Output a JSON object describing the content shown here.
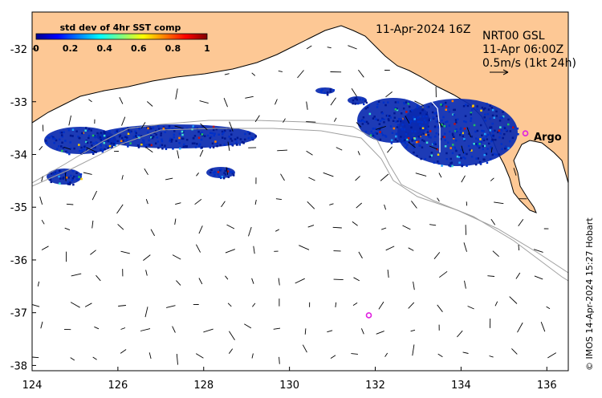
{
  "map": {
    "date_title": "11-Apr-2024 16Z",
    "product": "NRT00 GSL",
    "current_time": "11-Apr 06:00Z",
    "scale_label": "0.5m/s (1kt 24h)",
    "credit": "© IMOS 14-Apr-2024 15:27 Hobart",
    "argo_label": "Argo",
    "x_range": [
      124,
      136.5
    ],
    "y_range": [
      -38.1,
      -31.3
    ],
    "x_ticks": [
      "124",
      "126",
      "128",
      "130",
      "132",
      "134",
      "136"
    ],
    "y_ticks": [
      "-32",
      "-33",
      "-34",
      "-35",
      "-36",
      "-37",
      "-38"
    ],
    "colors": {
      "land": "#fdc895",
      "sst_low": "#0a2ab0",
      "argo": "#e020e0",
      "contour": "#a0a0a0"
    },
    "argo_floats": [
      {
        "lon": 135.5,
        "lat": -33.6,
        "labeled": true
      },
      {
        "lon": 131.85,
        "lat": -37.05,
        "labeled": false
      }
    ]
  },
  "legend": {
    "title": "std dev of 4hr SST comp",
    "ticks": [
      "0",
      "0.2",
      "0.4",
      "0.6",
      "0.8",
      "1"
    ],
    "colormap": [
      "#00008f",
      "#0000ff",
      "#0080ff",
      "#00ffff",
      "#80ff80",
      "#ffff00",
      "#ff8000",
      "#ff0000",
      "#800000"
    ]
  }
}
